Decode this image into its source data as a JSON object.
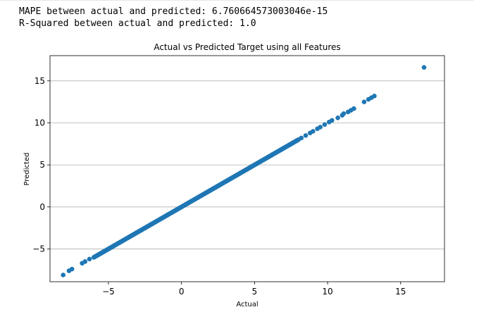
{
  "output": {
    "mape_line": "MAPE between actual and predicted: 6.760664573003046e-15",
    "r2_line": "R-Squared between actual and predicted: 1.0"
  },
  "colors": {
    "marker": "#1f77b4",
    "grid": "#b0b0b0",
    "axes": "#000000"
  },
  "chart_data": {
    "type": "scatter",
    "title": "Actual vs Predicted Target using all Features",
    "xlabel": "Actual",
    "ylabel": "Predicted",
    "xlim": [
      -9,
      18
    ],
    "ylim": [
      -8.9,
      18
    ],
    "xticks": [
      -5,
      0,
      5,
      10,
      15
    ],
    "xtick_labels": [
      "−5",
      "0",
      "5",
      "10",
      "15"
    ],
    "yticks": [
      -5,
      0,
      5,
      10,
      15
    ],
    "ytick_labels": [
      "−5",
      "0",
      "5",
      "10",
      "15"
    ],
    "grid": "y",
    "dense_segment": {
      "from": -6.0,
      "to": 8.0,
      "count": 400
    },
    "points": [
      {
        "x": -8.1,
        "y": -8.1
      },
      {
        "x": -7.7,
        "y": -7.6
      },
      {
        "x": -7.5,
        "y": -7.4
      },
      {
        "x": -6.8,
        "y": -6.7
      },
      {
        "x": -6.6,
        "y": -6.5
      },
      {
        "x": -6.3,
        "y": -6.2
      },
      {
        "x": 8.2,
        "y": 8.2
      },
      {
        "x": 8.5,
        "y": 8.5
      },
      {
        "x": 8.8,
        "y": 8.8
      },
      {
        "x": 9.0,
        "y": 9.0
      },
      {
        "x": 9.3,
        "y": 9.3
      },
      {
        "x": 9.5,
        "y": 9.5
      },
      {
        "x": 9.8,
        "y": 9.8
      },
      {
        "x": 10.1,
        "y": 10.1
      },
      {
        "x": 10.3,
        "y": 10.3
      },
      {
        "x": 10.7,
        "y": 10.6
      },
      {
        "x": 11.0,
        "y": 10.9
      },
      {
        "x": 11.1,
        "y": 11.1
      },
      {
        "x": 11.4,
        "y": 11.3
      },
      {
        "x": 11.6,
        "y": 11.5
      },
      {
        "x": 11.8,
        "y": 11.7
      },
      {
        "x": 12.5,
        "y": 12.5
      },
      {
        "x": 12.8,
        "y": 12.8
      },
      {
        "x": 13.0,
        "y": 13.0
      },
      {
        "x": 13.2,
        "y": 13.2
      },
      {
        "x": 16.6,
        "y": 16.6
      }
    ]
  }
}
